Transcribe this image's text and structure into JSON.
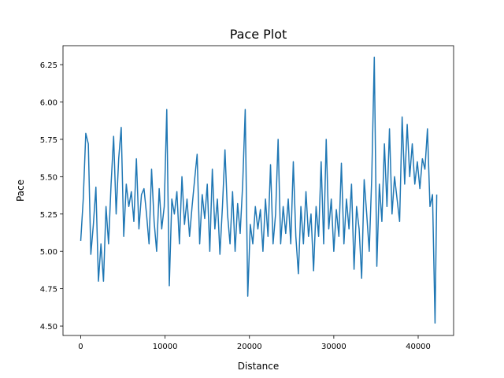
{
  "chart_data": {
    "type": "line",
    "title": "Pace Plot",
    "x_label": "Distance",
    "y_label": "Pace",
    "color": "#1f77b4",
    "x": [
      0,
      300,
      600,
      900,
      1200,
      1500,
      1800,
      2100,
      2400,
      2700,
      3000,
      3300,
      3600,
      3900,
      4200,
      4500,
      4800,
      5100,
      5400,
      5700,
      6000,
      6300,
      6600,
      6900,
      7200,
      7500,
      7800,
      8100,
      8400,
      8700,
      9000,
      9300,
      9600,
      9900,
      10200,
      10500,
      10800,
      11100,
      11400,
      11700,
      12000,
      12300,
      12600,
      12900,
      13200,
      13500,
      13800,
      14100,
      14400,
      14700,
      15000,
      15300,
      15600,
      15900,
      16200,
      16500,
      16800,
      17100,
      17400,
      17700,
      18000,
      18300,
      18600,
      18900,
      19200,
      19500,
      19800,
      20100,
      20400,
      20700,
      21000,
      21300,
      21600,
      21900,
      22200,
      22500,
      22800,
      23100,
      23400,
      23700,
      24000,
      24300,
      24600,
      24900,
      25200,
      25500,
      25800,
      26100,
      26400,
      26700,
      27000,
      27300,
      27600,
      27900,
      28200,
      28500,
      28800,
      29100,
      29400,
      29700,
      30000,
      30300,
      30600,
      30900,
      31200,
      31500,
      31800,
      32100,
      32400,
      32700,
      33000,
      33300,
      33600,
      33900,
      34200,
      34500,
      34800,
      35100,
      35400,
      35700,
      36000,
      36300,
      36600,
      36900,
      37200,
      37500,
      37800,
      38100,
      38400,
      38700,
      39000,
      39300,
      39600,
      39900,
      40200,
      40500,
      40800,
      41100,
      41400,
      41700,
      42000,
      42200
    ],
    "values": [
      5.07,
      5.35,
      5.79,
      5.72,
      4.98,
      5.18,
      5.43,
      4.8,
      5.05,
      4.8,
      5.3,
      5.05,
      5.45,
      5.77,
      5.25,
      5.62,
      5.83,
      5.1,
      5.45,
      5.3,
      5.4,
      5.2,
      5.62,
      5.15,
      5.38,
      5.42,
      5.25,
      5.05,
      5.55,
      5.2,
      5.0,
      5.42,
      5.15,
      5.3,
      5.95,
      4.77,
      5.35,
      5.25,
      5.4,
      5.05,
      5.5,
      5.18,
      5.35,
      5.1,
      5.3,
      5.48,
      5.65,
      5.05,
      5.38,
      5.22,
      5.45,
      5.0,
      5.55,
      5.15,
      5.35,
      4.98,
      5.3,
      5.68,
      5.25,
      5.05,
      5.4,
      5.0,
      5.32,
      5.12,
      5.45,
      5.95,
      4.7,
      5.18,
      5.05,
      5.3,
      5.15,
      5.28,
      5.0,
      5.35,
      5.1,
      5.58,
      5.05,
      5.25,
      5.75,
      5.05,
      5.3,
      5.12,
      5.35,
      5.05,
      5.6,
      5.1,
      4.85,
      5.3,
      5.05,
      5.4,
      5.1,
      5.25,
      4.87,
      5.3,
      5.1,
      5.6,
      5.05,
      5.75,
      5.15,
      5.35,
      5.0,
      5.28,
      5.1,
      5.59,
      5.05,
      5.35,
      5.15,
      5.45,
      4.88,
      5.3,
      5.15,
      4.82,
      5.48,
      5.25,
      5.0,
      5.5,
      6.3,
      4.9,
      5.45,
      5.2,
      5.72,
      5.3,
      5.82,
      5.25,
      5.5,
      5.35,
      5.2,
      5.9,
      5.45,
      5.85,
      5.5,
      5.72,
      5.45,
      5.6,
      5.42,
      5.62,
      5.55,
      5.82,
      5.3,
      5.38,
      4.52,
      5.38
    ],
    "xlim": [
      -2100,
      44200
    ],
    "xticks": [
      0,
      10000,
      20000,
      30000,
      40000
    ],
    "ylim": [
      4.437,
      6.377
    ],
    "yticks": [
      {
        "value": 4.5,
        "label": "4.50"
      },
      4.75,
      {
        "value": 5,
        "label": "5.00"
      },
      5.25,
      {
        "value": 5.5,
        "label": "5.50"
      },
      5.75,
      {
        "value": 6,
        "label": "6.00"
      },
      6.25
    ]
  }
}
